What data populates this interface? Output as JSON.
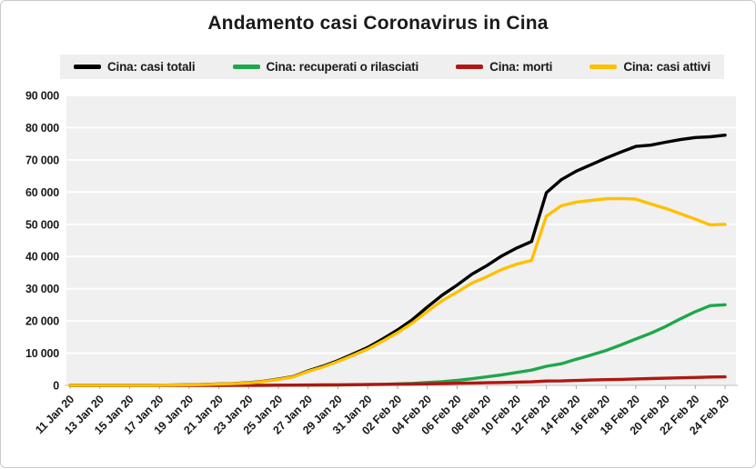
{
  "card": {
    "title": "Andamento casi Coronavirus in Cina"
  },
  "legend": {
    "items": [
      {
        "label": "Cina: casi totali",
        "color": "#000000"
      },
      {
        "label": "Cina: recuperati o rilasciati",
        "color": "#1FA74B"
      },
      {
        "label": "Cina: morti",
        "color": "#B01712"
      },
      {
        "label": "Cina: casi attivi",
        "color": "#FFC000"
      }
    ]
  },
  "chart_data": {
    "type": "line",
    "title": "Andamento casi Coronavirus in Cina",
    "xlabel": "",
    "ylabel": "",
    "ylim": [
      0,
      90000
    ],
    "y_ticks": [
      0,
      10000,
      20000,
      30000,
      40000,
      50000,
      60000,
      70000,
      80000,
      90000
    ],
    "y_tick_labels": [
      "0",
      "10 000",
      "20 000",
      "30 000",
      "40 000",
      "50 000",
      "60 000",
      "70 000",
      "80 000",
      "90 000"
    ],
    "grid": "horizontal-white-on-light-gray",
    "legend_position": "top",
    "x": [
      "11 Jan 20",
      "12 Jan 20",
      "13 Jan 20",
      "14 Jan 20",
      "15 Jan 20",
      "16 Jan 20",
      "17 Jan 20",
      "18 Jan 20",
      "19 Jan 20",
      "20 Jan 20",
      "21 Jan 20",
      "22 Jan 20",
      "23 Jan 20",
      "24 Jan 20",
      "25 Jan 20",
      "26 Jan 20",
      "27 Jan 20",
      "28 Jan 20",
      "29 Jan 20",
      "30 Jan 20",
      "31 Jan 20",
      "01 Feb 20",
      "02 Feb 20",
      "03 Feb 20",
      "04 Feb 20",
      "05 Feb 20",
      "06 Feb 20",
      "07 Feb 20",
      "08 Feb 20",
      "09 Feb 20",
      "10 Feb 20",
      "11 Feb 20",
      "12 Feb 20",
      "13 Feb 20",
      "14 Feb 20",
      "15 Feb 20",
      "16 Feb 20",
      "17 Feb 20",
      "18 Feb 20",
      "19 Feb 20",
      "20 Feb 20",
      "21 Feb 20",
      "22 Feb 20",
      "23 Feb 20",
      "24 Feb 20"
    ],
    "x_tick_every": 2,
    "series": [
      {
        "name": "Cina: casi totali",
        "color": "#000000",
        "values": [
          41,
          41,
          41,
          41,
          41,
          45,
          62,
          121,
          198,
          291,
          440,
          571,
          830,
          1287,
          1975,
          2744,
          4515,
          5974,
          7711,
          9692,
          11791,
          14380,
          17205,
          20438,
          24324,
          28018,
          31161,
          34546,
          37198,
          40171,
          42638,
          44653,
          59804,
          63851,
          66492,
          68500,
          70548,
          72436,
          74185,
          74576,
          75465,
          76288,
          76936,
          77150,
          77658
        ]
      },
      {
        "name": "Cina: recuperati o rilasciati",
        "color": "#1FA74B",
        "values": [
          2,
          2,
          3,
          3,
          5,
          8,
          12,
          17,
          19,
          25,
          25,
          28,
          34,
          38,
          49,
          51,
          60,
          103,
          124,
          171,
          243,
          328,
          475,
          632,
          892,
          1153,
          1540,
          2050,
          2649,
          3281,
          3996,
          4740,
          5911,
          6723,
          8096,
          9419,
          10844,
          12552,
          14376,
          16155,
          18264,
          20659,
          22888,
          24734,
          25015
        ]
      },
      {
        "name": "Cina: morti",
        "color": "#B01712",
        "values": [
          1,
          1,
          1,
          1,
          2,
          2,
          3,
          3,
          4,
          6,
          9,
          17,
          25,
          41,
          56,
          80,
          106,
          132,
          170,
          213,
          259,
          304,
          361,
          425,
          490,
          563,
          637,
          722,
          811,
          908,
          1016,
          1113,
          1367,
          1380,
          1523,
          1665,
          1770,
          1868,
          2004,
          2118,
          2236,
          2345,
          2442,
          2592,
          2663
        ]
      },
      {
        "name": "Cina: casi attivi",
        "color": "#FFC000",
        "values": [
          38,
          38,
          37,
          37,
          34,
          35,
          47,
          101,
          175,
          260,
          406,
          526,
          771,
          1208,
          1870,
          2613,
          4349,
          5739,
          7417,
          9308,
          11289,
          13748,
          16369,
          19381,
          22942,
          26302,
          28984,
          31774,
          33738,
          35982,
          37626,
          38800,
          52526,
          55748,
          56873,
          57416,
          57934,
          58016,
          57805,
          56303,
          54965,
          53284,
          51606,
          49824,
          49980
        ]
      }
    ]
  }
}
